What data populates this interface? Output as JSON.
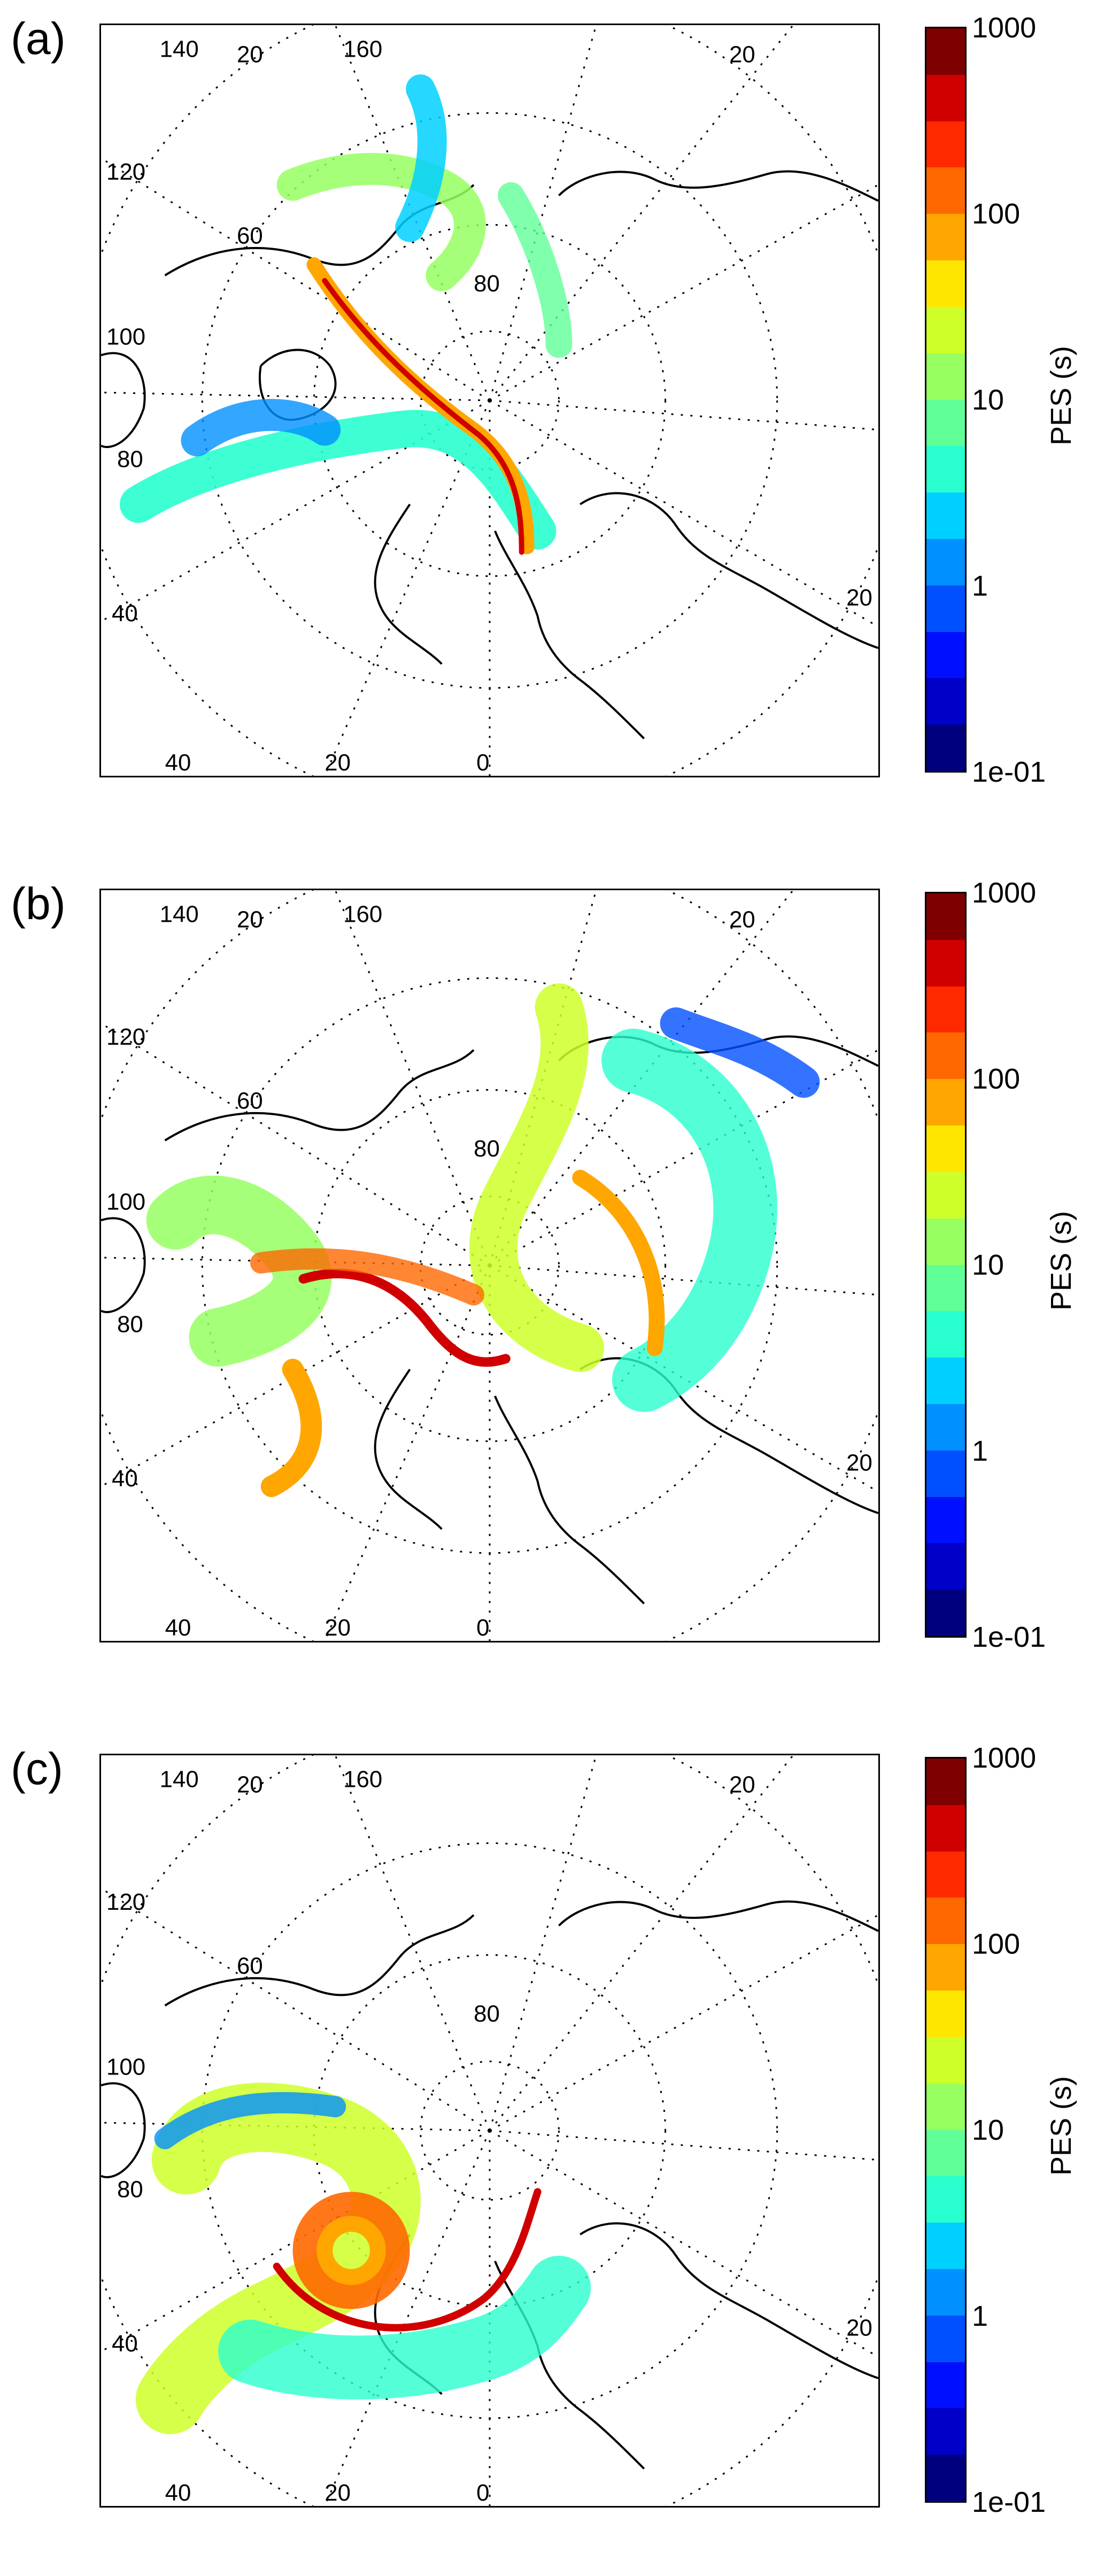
{
  "figure": {
    "panels": [
      {
        "label": "(a)",
        "colorbar": {
          "label": "PES (s)",
          "ticks": [
            "1000",
            "100",
            "10",
            "1",
            "1e-01"
          ],
          "scale": "log",
          "range": [
            0.1,
            1000
          ]
        },
        "grid_labels": [
          "140",
          "20",
          "160",
          "20",
          "120",
          "100",
          "80",
          "60",
          "40",
          "20",
          "0",
          "20",
          "40",
          "80"
        ]
      },
      {
        "label": "(b)",
        "colorbar": {
          "label": "PES (s)",
          "ticks": [
            "1000",
            "100",
            "10",
            "1",
            "1e-01"
          ],
          "scale": "log",
          "range": [
            0.1,
            1000
          ]
        },
        "grid_labels": [
          "140",
          "20",
          "160",
          "20",
          "120",
          "100",
          "80",
          "60",
          "40",
          "20",
          "0",
          "20",
          "40",
          "80"
        ]
      },
      {
        "label": "(c)",
        "colorbar": {
          "label": "PES (s)",
          "ticks": [
            "1000",
            "100",
            "10",
            "1",
            "1e-01"
          ],
          "scale": "log",
          "range": [
            0.1,
            1000
          ]
        },
        "grid_labels": [
          "140",
          "20",
          "160",
          "20",
          "120",
          "100",
          "80",
          "60",
          "40",
          "20",
          "0",
          "20",
          "40",
          "80"
        ]
      }
    ],
    "colormap": [
      "#00007f",
      "#0000c8",
      "#0010ff",
      "#0050ff",
      "#0090ff",
      "#00d0ff",
      "#29ffce",
      "#60ff97",
      "#97ff60",
      "#ceff29",
      "#ffe600",
      "#ffa600",
      "#ff6800",
      "#ff2900",
      "#d00000",
      "#7f0000"
    ],
    "map_type": "north polar stereographic projection with dotted graticule and coastlines",
    "colors": {
      "land_outline": "#000000",
      "graticule": "#000000",
      "background": "#ffffff"
    }
  }
}
